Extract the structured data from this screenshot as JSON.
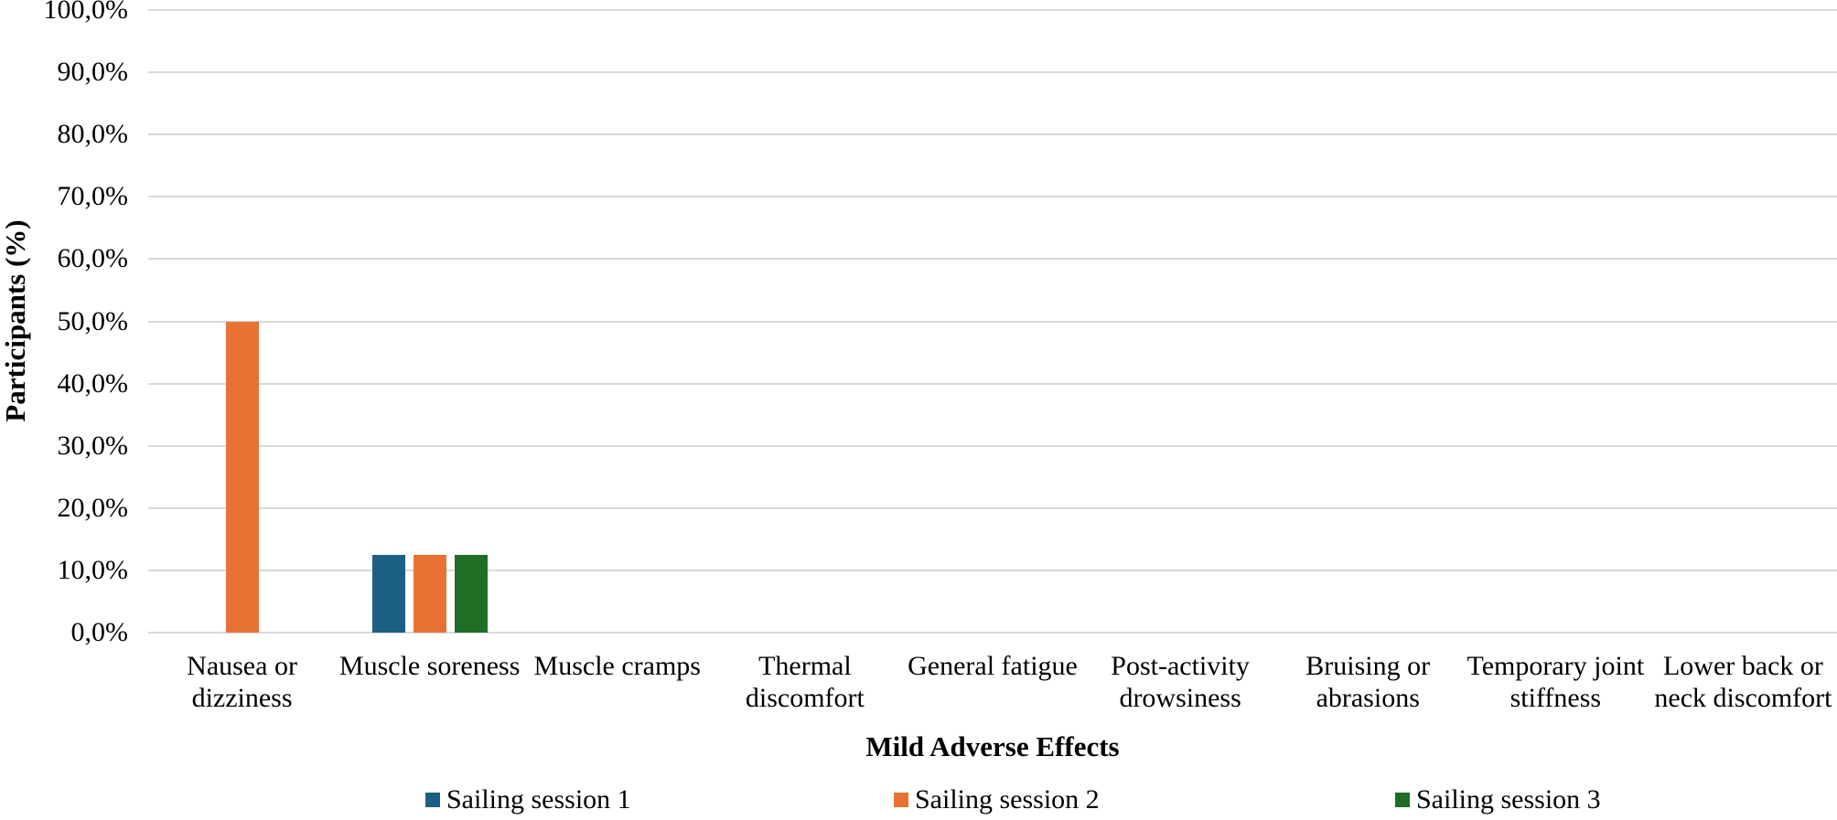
{
  "chart_data": {
    "type": "bar",
    "title": "",
    "xlabel": "Mild Adverse Effects",
    "ylabel": "Participants (%)",
    "categories": [
      "Nausea or dizziness",
      "Muscle soreness",
      "Muscle cramps",
      "Thermal discomfort",
      "General fatigue",
      "Post-activity drowsiness",
      "Bruising or abrasions",
      "Temporary joint stiffness",
      "Lower back or neck discomfort"
    ],
    "series": [
      {
        "name": "Sailing session 1",
        "color": "#1B6082",
        "values": [
          0,
          12.5,
          0,
          0,
          0,
          0,
          0,
          0,
          0
        ]
      },
      {
        "name": "Sailing session 2",
        "color": "#E87233",
        "values": [
          50,
          12.5,
          0,
          0,
          0,
          0,
          0,
          0,
          0
        ]
      },
      {
        "name": "Sailing session 3",
        "color": "#1F6E24",
        "values": [
          0,
          12.5,
          0,
          0,
          0,
          0,
          0,
          0,
          0
        ]
      }
    ],
    "ylim": [
      0,
      100
    ],
    "y_ticks": [
      "0,0%",
      "10,0%",
      "20,0%",
      "30,0%",
      "40,0%",
      "50,0%",
      "60,0%",
      "70,0%",
      "80,0%",
      "90,0%",
      "100,0%"
    ],
    "grid": true,
    "gridline_color": "#D9D9D9",
    "legend_position": "bottom",
    "legend_entries": [
      "Sailing session 1",
      "Sailing session 2",
      "Sailing session 3"
    ]
  }
}
